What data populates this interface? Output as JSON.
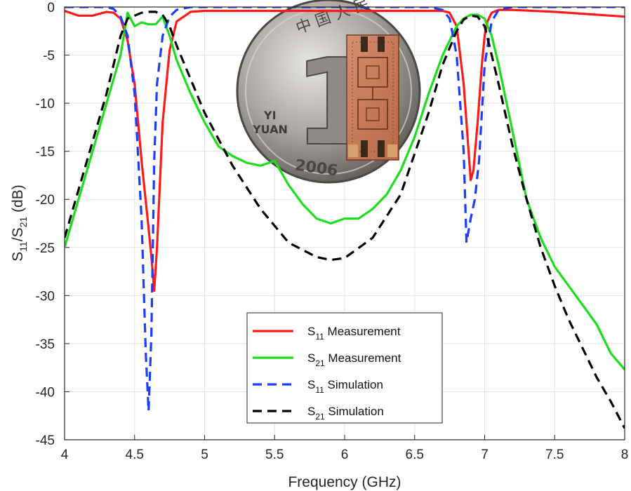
{
  "chart_data": {
    "type": "line",
    "xlabel": "Frequency (GHz)",
    "ylabel": {
      "main": "S",
      "sub1": "11",
      "sep": "/S",
      "sub2": "21",
      "unit": " (dB)"
    },
    "xlim": [
      4,
      8
    ],
    "ylim": [
      -45,
      0
    ],
    "xticks": [
      "4",
      "4.5",
      "5",
      "5.5",
      "6",
      "6.5",
      "7",
      "7.5",
      "8"
    ],
    "yticks": [
      "0",
      "-5",
      "-10",
      "-15",
      "-20",
      "-25",
      "-30",
      "-35",
      "-40",
      "-45"
    ],
    "grid": true,
    "legend_position": "bottom-center",
    "inset_photo": {
      "coin_text_top": "中 国 人 民",
      "coin_numeral": "1",
      "coin_text_mid": "YI",
      "coin_text_low": "YUAN",
      "coin_year": "2006"
    },
    "series": [
      {
        "name": "S11 Measurement",
        "label_main": "S",
        "label_sub": "11",
        "label_tail": " Measurement",
        "color": "#ff1a1a",
        "dash": "solid",
        "x": [
          4.0,
          4.1,
          4.2,
          4.3,
          4.35,
          4.4,
          4.45,
          4.5,
          4.55,
          4.6,
          4.62,
          4.64,
          4.66,
          4.7,
          4.75,
          4.8,
          4.9,
          5.0,
          5.5,
          6.0,
          6.5,
          6.7,
          6.75,
          6.8,
          6.85,
          6.88,
          6.9,
          6.92,
          6.95,
          6.98,
          7.0,
          7.02,
          7.05,
          7.1,
          7.2,
          7.5,
          8.0
        ],
        "y": [
          -0.4,
          -0.9,
          -0.9,
          -0.5,
          -0.6,
          -1.2,
          -3.5,
          -8,
          -16,
          -23,
          -26,
          -29.5,
          -25,
          -12,
          -4.5,
          -1.5,
          -0.5,
          -0.4,
          -0.4,
          -0.4,
          -0.4,
          -0.4,
          -0.6,
          -2,
          -8,
          -14,
          -18,
          -17,
          -12,
          -6,
          -3,
          -1.5,
          -0.6,
          -0.3,
          -0.3,
          -0.5,
          -1.0
        ]
      },
      {
        "name": "S21 Measurement",
        "label_main": "S",
        "label_sub": "21",
        "label_tail": " Measurement",
        "color": "#1edc1e",
        "dash": "solid",
        "x": [
          4.0,
          4.1,
          4.2,
          4.3,
          4.4,
          4.45,
          4.5,
          4.55,
          4.6,
          4.65,
          4.7,
          4.75,
          4.8,
          4.9,
          5.0,
          5.1,
          5.2,
          5.3,
          5.4,
          5.5,
          5.6,
          5.7,
          5.8,
          5.9,
          6.0,
          6.1,
          6.2,
          6.3,
          6.4,
          6.5,
          6.6,
          6.7,
          6.8,
          6.85,
          6.9,
          6.95,
          7.0,
          7.05,
          7.1,
          7.2,
          7.3,
          7.4,
          7.5,
          7.6,
          7.7,
          7.8,
          7.9,
          8.0
        ],
        "y": [
          -25,
          -20,
          -15,
          -10,
          -5,
          -0.6,
          -2,
          -1.6,
          -1.8,
          -1.8,
          -1.0,
          -3,
          -5.5,
          -9,
          -12,
          -14.5,
          -15.5,
          -16.2,
          -16.5,
          -16,
          -18.5,
          -20.5,
          -22,
          -22.5,
          -22,
          -22,
          -21,
          -19.5,
          -17,
          -13.5,
          -9,
          -5,
          -2,
          -1.2,
          -0.8,
          -0.8,
          -1.2,
          -3,
          -6,
          -13,
          -20,
          -24,
          -27,
          -29,
          -31,
          -33,
          -36,
          -37.7
        ]
      },
      {
        "name": "S11 Simulation",
        "label_main": "S",
        "label_sub": "11",
        "label_tail": " Simulation",
        "color": "#1a3dff",
        "dash": "dashed",
        "x": [
          4.0,
          4.2,
          4.3,
          4.35,
          4.4,
          4.45,
          4.5,
          4.55,
          4.58,
          4.6,
          4.62,
          4.64,
          4.66,
          4.7,
          4.75,
          4.8,
          4.9,
          5.0,
          6.0,
          6.6,
          6.7,
          6.75,
          6.8,
          6.85,
          6.87,
          6.9,
          6.93,
          6.96,
          7.0,
          7.05,
          7.1,
          7.2,
          8.0
        ],
        "y": [
          0,
          0,
          0,
          -0.2,
          -1.0,
          -3,
          -9,
          -22,
          -36,
          -42,
          -34,
          -16,
          -8,
          -3,
          -1.0,
          -0.3,
          0,
          0,
          0,
          0,
          -0.3,
          -1.2,
          -5,
          -15,
          -24.5,
          -22,
          -20,
          -16,
          -6,
          -1.5,
          -0.3,
          0,
          0
        ]
      },
      {
        "name": "S21 Simulation",
        "label_main": "S",
        "label_sub": "21",
        "label_tail": " Simulation",
        "color": "#000000",
        "dash": "dashed",
        "x": [
          4.0,
          4.1,
          4.2,
          4.3,
          4.4,
          4.45,
          4.5,
          4.55,
          4.6,
          4.65,
          4.7,
          4.75,
          4.8,
          4.9,
          5.0,
          5.2,
          5.4,
          5.6,
          5.8,
          5.9,
          6.0,
          6.2,
          6.4,
          6.6,
          6.7,
          6.8,
          6.85,
          6.9,
          6.95,
          7.0,
          7.05,
          7.1,
          7.2,
          7.3,
          7.4,
          7.5,
          7.6,
          7.7,
          7.8,
          7.9,
          8.0
        ],
        "y": [
          -24,
          -19,
          -14,
          -9,
          -3,
          -1.2,
          -0.9,
          -0.6,
          -0.5,
          -0.5,
          -0.8,
          -2,
          -4,
          -7.5,
          -11,
          -16.5,
          -21,
          -24.5,
          -26,
          -26.3,
          -26.1,
          -24,
          -19.5,
          -11,
          -6,
          -2.5,
          -1.3,
          -0.9,
          -1.0,
          -2,
          -5,
          -8,
          -14.5,
          -20,
          -25,
          -29,
          -32.5,
          -35.5,
          -38.5,
          -41,
          -43.8
        ]
      }
    ]
  }
}
